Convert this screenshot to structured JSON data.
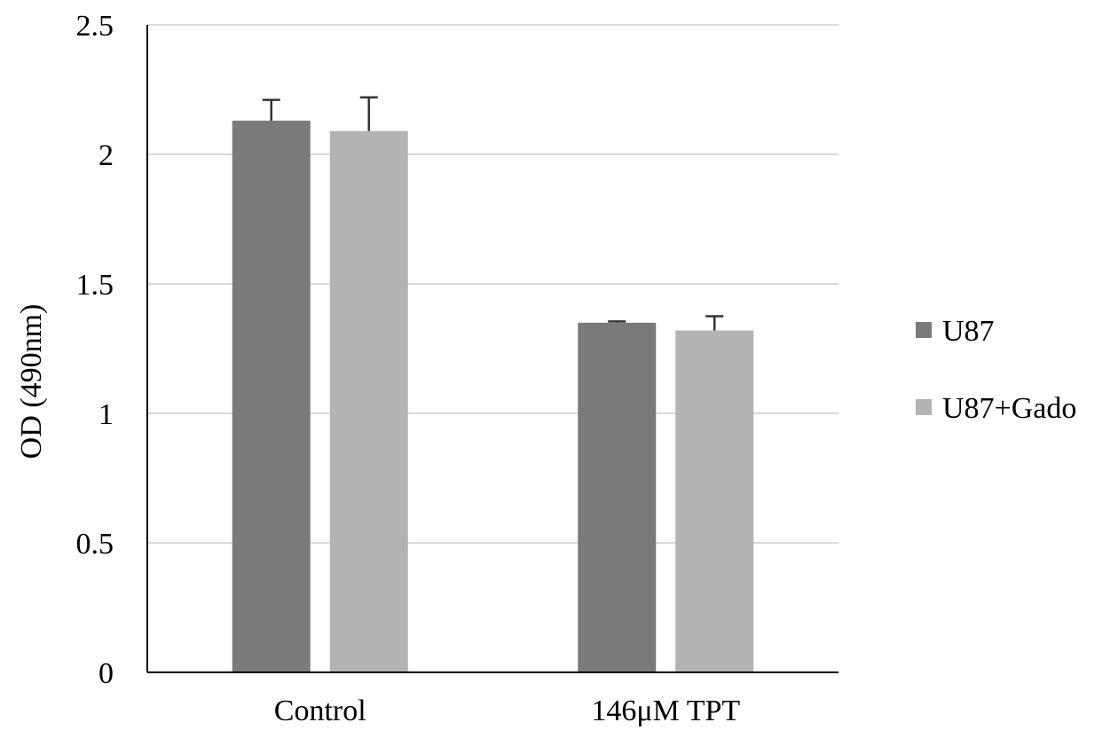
{
  "chart_data": {
    "type": "bar",
    "title": "",
    "xlabel": "",
    "ylabel": "OD (490nm)",
    "ylim": [
      0,
      2.5
    ],
    "yticks": [
      0,
      0.5,
      1,
      1.5,
      2,
      2.5
    ],
    "ytick_labels": [
      "0",
      "0.5",
      "1",
      "1.5",
      "2",
      "2.5"
    ],
    "grid": true,
    "legend_position": "right",
    "categories": [
      "Control",
      "146μM TPT"
    ],
    "series": [
      {
        "name": "U87",
        "color": "#7a7a7a",
        "values": [
          2.13,
          1.35
        ],
        "errors": [
          0.08,
          0.005
        ]
      },
      {
        "name": "U87+Gado",
        "color": "#b3b3b3",
        "values": [
          2.09,
          1.32
        ],
        "errors": [
          0.13,
          0.055
        ]
      }
    ]
  }
}
